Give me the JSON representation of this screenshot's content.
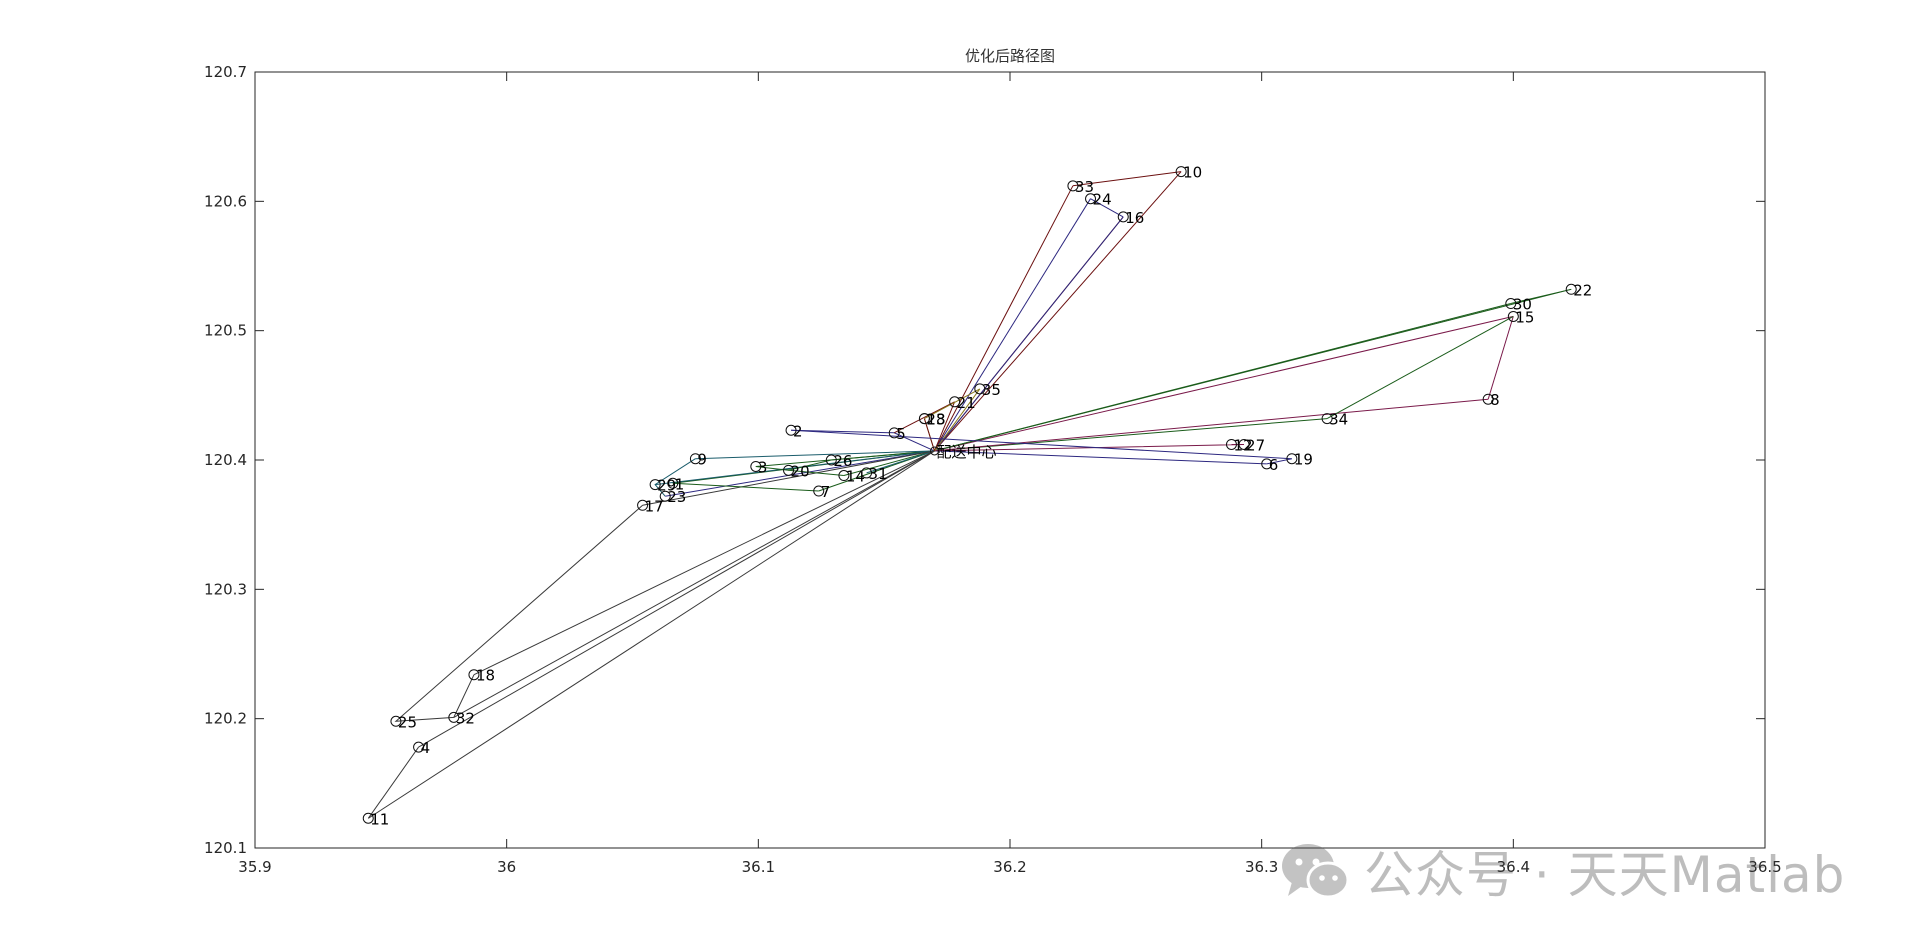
{
  "chart_data": {
    "type": "line",
    "title": "优化后路径图",
    "xlabel": "",
    "ylabel": "",
    "xlim": [
      35.9,
      36.5
    ],
    "ylim": [
      120.1,
      120.7
    ],
    "xticks": [
      "35.9",
      "36",
      "36.1",
      "36.2",
      "36.3",
      "36.4",
      "36.5"
    ],
    "yticks": [
      "120.1",
      "120.2",
      "120.3",
      "120.4",
      "120.5",
      "120.6",
      "120.7"
    ],
    "grid": false,
    "depot": {
      "label": "配送中心",
      "x": 36.17,
      "y": 120.407
    },
    "nodes": [
      {
        "label": "1",
        "x": 36.066,
        "y": 120.382
      },
      {
        "label": "2",
        "x": 36.113,
        "y": 120.423
      },
      {
        "label": "3",
        "x": 36.099,
        "y": 120.395
      },
      {
        "label": "4",
        "x": 35.965,
        "y": 120.178
      },
      {
        "label": "5",
        "x": 36.154,
        "y": 120.421
      },
      {
        "label": "6",
        "x": 36.302,
        "y": 120.397
      },
      {
        "label": "7",
        "x": 36.124,
        "y": 120.376
      },
      {
        "label": "8",
        "x": 36.39,
        "y": 120.447
      },
      {
        "label": "9",
        "x": 36.075,
        "y": 120.401
      },
      {
        "label": "10",
        "x": 36.268,
        "y": 120.623
      },
      {
        "label": "11",
        "x": 35.945,
        "y": 120.123
      },
      {
        "label": "12",
        "x": 36.288,
        "y": 120.412
      },
      {
        "label": "13",
        "x": 36.166,
        "y": 120.432
      },
      {
        "label": "14",
        "x": 36.134,
        "y": 120.388
      },
      {
        "label": "15",
        "x": 36.4,
        "y": 120.511
      },
      {
        "label": "16",
        "x": 36.245,
        "y": 120.588
      },
      {
        "label": "17",
        "x": 36.054,
        "y": 120.365
      },
      {
        "label": "18",
        "x": 35.987,
        "y": 120.234
      },
      {
        "label": "19",
        "x": 36.312,
        "y": 120.401
      },
      {
        "label": "20",
        "x": 36.112,
        "y": 120.392
      },
      {
        "label": "21",
        "x": 36.178,
        "y": 120.445
      },
      {
        "label": "22",
        "x": 36.423,
        "y": 120.532
      },
      {
        "label": "23",
        "x": 36.063,
        "y": 120.372
      },
      {
        "label": "24",
        "x": 36.232,
        "y": 120.602
      },
      {
        "label": "25",
        "x": 35.956,
        "y": 120.198
      },
      {
        "label": "26",
        "x": 36.129,
        "y": 120.4
      },
      {
        "label": "27",
        "x": 36.293,
        "y": 120.412
      },
      {
        "label": "28",
        "x": 36.166,
        "y": 120.432
      },
      {
        "label": "29",
        "x": 36.059,
        "y": 120.381
      },
      {
        "label": "30",
        "x": 36.399,
        "y": 120.521
      },
      {
        "label": "31",
        "x": 36.143,
        "y": 120.39
      },
      {
        "label": "32",
        "x": 35.979,
        "y": 120.201
      },
      {
        "label": "33",
        "x": 36.225,
        "y": 120.612
      },
      {
        "label": "34",
        "x": 36.326,
        "y": 120.432
      },
      {
        "label": "35",
        "x": 36.188,
        "y": 120.455
      }
    ],
    "routes": [
      {
        "color": "#6b0f0f",
        "stops": [
          "10",
          "33"
        ]
      },
      {
        "color": "#2d2880",
        "stops": [
          "24",
          "16"
        ]
      },
      {
        "color": "#1a5c1a",
        "stops": [
          "22",
          "30"
        ]
      },
      {
        "color": "#7a1a4a",
        "stops": [
          "15",
          "8"
        ]
      },
      {
        "color": "#1a5c1a",
        "stops": [
          "15",
          "34"
        ]
      },
      {
        "color": "#2d2880",
        "stops": [
          "2",
          "19",
          "6"
        ]
      },
      {
        "color": "#1a5c1a",
        "stops": [
          "3",
          "20",
          "26"
        ]
      },
      {
        "color": "#1a5c6b",
        "stops": [
          "9",
          "29",
          "23"
        ]
      },
      {
        "color": "#1a5c1a",
        "stops": [
          "1",
          "7"
        ]
      },
      {
        "color": "#1a5c1a",
        "stops": [
          "20",
          "14"
        ]
      },
      {
        "color": "#3a3a3a",
        "stops": [
          "17",
          "25",
          "32",
          "18"
        ]
      },
      {
        "color": "#3a3a3a",
        "stops": [
          "4",
          "11"
        ]
      },
      {
        "color": "#6b0f0f",
        "stops": [
          "5",
          "21"
        ]
      },
      {
        "color": "#8a7a1a",
        "stops": [
          "13",
          "35"
        ]
      }
    ],
    "depot_routes": [
      {
        "color": "#6b0f0f",
        "stops": [
          "配送中心",
          "33"
        ]
      },
      {
        "color": "#6b0f0f",
        "stops": [
          "配送中心",
          "10"
        ]
      },
      {
        "color": "#2d2880",
        "stops": [
          "配送中心",
          "24"
        ]
      },
      {
        "color": "#6b0f0f",
        "stops": [
          "配送中心",
          "16"
        ]
      },
      {
        "color": "#2d2880",
        "stops": [
          "配送中心",
          "16"
        ]
      },
      {
        "color": "#1a5c1a",
        "stops": [
          "配送中心",
          "30"
        ]
      },
      {
        "color": "#7a1a4a",
        "stops": [
          "配送中心",
          "15"
        ]
      },
      {
        "color": "#1a5c1a",
        "stops": [
          "配送中心",
          "22"
        ]
      },
      {
        "color": "#1a5c1a",
        "stops": [
          "配送中心",
          "34"
        ]
      },
      {
        "color": "#7a1a4a",
        "stops": [
          "配送中心",
          "27",
          "12"
        ]
      },
      {
        "color": "#2d2880",
        "stops": [
          "配送中心",
          "6"
        ]
      },
      {
        "color": "#7a1a4a",
        "stops": [
          "配送中心",
          "8"
        ]
      },
      {
        "color": "#2d2880",
        "stops": [
          "配送中心",
          "5",
          "2"
        ]
      },
      {
        "color": "#1a5c1a",
        "stops": [
          "配送中心",
          "26"
        ]
      },
      {
        "color": "#1a5c1a",
        "stops": [
          "配送中心",
          "3"
        ]
      },
      {
        "color": "#1a5c6b",
        "stops": [
          "配送中心",
          "9"
        ]
      },
      {
        "color": "#2d2880",
        "stops": [
          "配送中心",
          "23"
        ]
      },
      {
        "color": "#1a5c1a",
        "stops": [
          "配送中心",
          "1"
        ]
      },
      {
        "color": "#1a5c1a",
        "stops": [
          "配送中心",
          "7"
        ]
      },
      {
        "color": "#1a5c1a",
        "stops": [
          "配送中心",
          "14"
        ]
      },
      {
        "color": "#1a5c6b",
        "stops": [
          "配送中心",
          "31"
        ]
      },
      {
        "color": "#1a5c6b",
        "stops": [
          "配送中心",
          "29"
        ]
      },
      {
        "color": "#3a3a3a",
        "stops": [
          "配送中心",
          "17"
        ]
      },
      {
        "color": "#3a3a3a",
        "stops": [
          "配送中心",
          "18"
        ]
      },
      {
        "color": "#3a3a3a",
        "stops": [
          "配送中心",
          "32"
        ]
      },
      {
        "color": "#3a3a3a",
        "stops": [
          "配送中心",
          "4"
        ]
      },
      {
        "color": "#3a3a3a",
        "stops": [
          "配送中心",
          "11"
        ]
      },
      {
        "color": "#6b0f0f",
        "stops": [
          "配送中心",
          "21"
        ]
      },
      {
        "color": "#8a7a1a",
        "stops": [
          "配送中心",
          "35"
        ]
      },
      {
        "color": "#8a7a1a",
        "stops": [
          "配送中心",
          "13"
        ]
      },
      {
        "color": "#6b0f0f",
        "stops": [
          "配送中心",
          "28"
        ]
      }
    ]
  },
  "watermark": {
    "text": "公众号 · 天天Matlab",
    "icon": "wechat-icon"
  }
}
